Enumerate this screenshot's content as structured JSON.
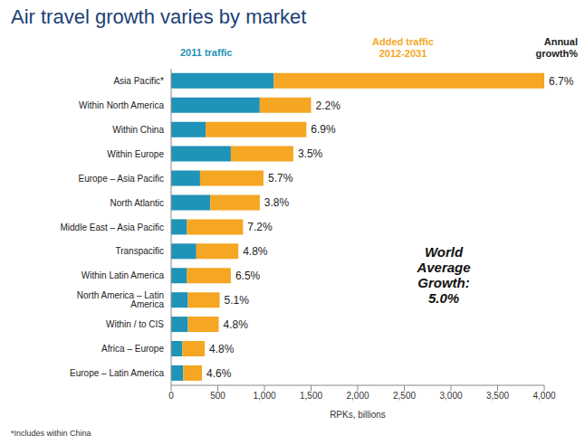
{
  "chart_data": {
    "type": "bar",
    "title": "Air travel growth varies by market",
    "orientation": "horizontal",
    "stacked": true,
    "grid": false,
    "categories": [
      "Asia Pacific*",
      "Within North America",
      "Within China",
      "Within Europe",
      "Europe – Asia Pacific",
      "North Atlantic",
      "Middle East – Asia Pacific",
      "Transpacific",
      "Within Latin America",
      "North America – Latin America",
      "Within / to CIS",
      "Africa – Europe",
      "Europe – Latin America"
    ],
    "series": [
      {
        "name": "2011 traffic",
        "color": "#1f93b8",
        "values": [
          1100,
          950,
          370,
          640,
          310,
          420,
          170,
          270,
          170,
          180,
          180,
          120,
          130
        ]
      },
      {
        "name": "Added traffic 2012-2031",
        "color": "#f5a623",
        "values": [
          2900,
          550,
          1080,
          670,
          680,
          530,
          600,
          450,
          470,
          340,
          330,
          240,
          200
        ]
      }
    ],
    "annual_growth": {
      "label": "Annual growth%",
      "values": [
        6.7,
        2.2,
        6.9,
        3.5,
        5.7,
        3.8,
        7.2,
        4.8,
        6.5,
        5.1,
        4.8,
        4.8,
        4.6
      ],
      "value_labels": [
        "6.7%",
        "2.2%",
        "6.9%",
        "3.5%",
        "5.7%",
        "3.8%",
        "7.2%",
        "4.8%",
        "6.5%",
        "5.1%",
        "4.8%",
        "4.8%",
        "4.6%"
      ]
    },
    "xlabel": "RPKs, billions",
    "xlim": [
      0,
      4000
    ],
    "xticks": [
      0,
      500,
      {
        "value": 1000,
        "label": "1,000"
      },
      {
        "value": 1500,
        "label": "1,500"
      },
      {
        "value": 2000,
        "label": "2,000"
      },
      {
        "value": 2500,
        "label": "2,500"
      },
      {
        "value": 3000,
        "label": "3,000"
      },
      {
        "value": 3500,
        "label": "3,500"
      },
      {
        "value": 4000,
        "label": "4,000"
      }
    ],
    "annotation": "World Average Growth: 5.0%",
    "footnote": "*Includes within China"
  }
}
